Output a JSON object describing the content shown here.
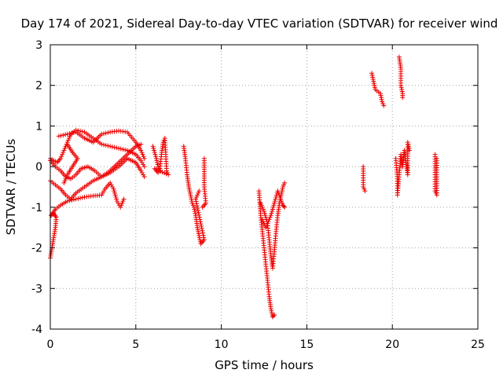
{
  "chart_data": {
    "type": "scatter",
    "title": "Day 174 of 2021, Sidereal Day-to-day VTEC variation (SDTVAR) for receiver wind",
    "xlabel": "GPS time / hours",
    "ylabel": "SDTVAR / TECUs",
    "xlim": [
      0,
      25
    ],
    "ylim": [
      -4,
      3
    ],
    "xticks": [
      0,
      5,
      10,
      15,
      20,
      25
    ],
    "yticks": [
      -4,
      -3,
      -2,
      -1,
      0,
      1,
      2,
      3
    ],
    "grid": true,
    "marker": "+",
    "color": "#ee0000",
    "series": [
      {
        "name": "SDTVAR",
        "segments": [
          [
            [
              0.0,
              -2.25
            ],
            [
              0.1,
              -2.0
            ],
            [
              0.2,
              -1.75
            ],
            [
              0.3,
              -1.5
            ],
            [
              0.35,
              -1.25
            ],
            [
              0.2,
              -1.15
            ],
            [
              0.05,
              -1.2
            ]
          ],
          [
            [
              0.05,
              -1.2
            ],
            [
              0.3,
              -1.05
            ],
            [
              0.6,
              -0.95
            ],
            [
              1.0,
              -0.85
            ],
            [
              1.5,
              -0.8
            ],
            [
              2.0,
              -0.75
            ],
            [
              2.5,
              -0.72
            ],
            [
              3.0,
              -0.7
            ],
            [
              3.2,
              -0.55
            ],
            [
              3.5,
              -0.4
            ],
            [
              3.7,
              -0.55
            ],
            [
              3.9,
              -0.85
            ],
            [
              4.1,
              -1.0
            ],
            [
              4.3,
              -0.8
            ]
          ],
          [
            [
              0.0,
              0.2
            ],
            [
              0.2,
              0.15
            ],
            [
              0.4,
              0.1
            ],
            [
              0.6,
              0.2
            ],
            [
              0.8,
              0.4
            ],
            [
              1.0,
              0.6
            ],
            [
              1.2,
              0.8
            ],
            [
              1.5,
              0.9
            ],
            [
              2.0,
              0.85
            ],
            [
              2.5,
              0.7
            ],
            [
              3.0,
              0.55
            ],
            [
              3.5,
              0.5
            ],
            [
              4.0,
              0.45
            ],
            [
              4.5,
              0.4
            ],
            [
              5.0,
              0.3
            ],
            [
              5.3,
              0.15
            ],
            [
              5.5,
              0.0
            ]
          ],
          [
            [
              0.5,
              0.75
            ],
            [
              1.0,
              0.8
            ],
            [
              1.5,
              0.85
            ],
            [
              2.0,
              0.7
            ],
            [
              2.5,
              0.6
            ],
            [
              3.0,
              0.8
            ],
            [
              3.5,
              0.85
            ],
            [
              4.0,
              0.88
            ],
            [
              4.5,
              0.85
            ],
            [
              5.0,
              0.6
            ],
            [
              5.3,
              0.4
            ],
            [
              5.5,
              0.2
            ]
          ],
          [
            [
              0.0,
              0.15
            ],
            [
              0.3,
              0.0
            ],
            [
              0.6,
              -0.1
            ],
            [
              0.9,
              -0.25
            ],
            [
              1.2,
              -0.3
            ],
            [
              1.5,
              -0.2
            ],
            [
              1.8,
              -0.05
            ],
            [
              2.2,
              0.0
            ],
            [
              2.6,
              -0.1
            ],
            [
              3.0,
              -0.25
            ],
            [
              3.5,
              -0.15
            ],
            [
              4.0,
              0.0
            ],
            [
              4.5,
              0.2
            ],
            [
              5.0,
              0.1
            ],
            [
              5.3,
              -0.1
            ],
            [
              5.5,
              -0.25
            ]
          ],
          [
            [
              0.0,
              -0.35
            ],
            [
              0.3,
              -0.45
            ],
            [
              0.6,
              -0.55
            ],
            [
              0.9,
              -0.7
            ],
            [
              1.2,
              -0.8
            ],
            [
              1.5,
              -0.65
            ],
            [
              2.0,
              -0.5
            ],
            [
              2.5,
              -0.35
            ],
            [
              3.0,
              -0.25
            ],
            [
              3.5,
              -0.1
            ],
            [
              4.0,
              0.1
            ],
            [
              4.5,
              0.3
            ],
            [
              5.0,
              0.5
            ],
            [
              5.3,
              0.55
            ]
          ],
          [
            [
              1.0,
              0.55
            ],
            [
              1.3,
              0.35
            ],
            [
              1.6,
              0.2
            ],
            [
              1.3,
              0.0
            ],
            [
              1.0,
              -0.2
            ],
            [
              0.8,
              -0.4
            ]
          ],
          [
            [
              6.0,
              0.5
            ],
            [
              6.2,
              0.2
            ],
            [
              6.3,
              0.0
            ],
            [
              6.4,
              -0.1
            ],
            [
              6.5,
              0.3
            ],
            [
              6.6,
              0.6
            ],
            [
              6.7,
              0.7
            ],
            [
              6.8,
              -0.1
            ],
            [
              6.9,
              -0.2
            ],
            [
              6.1,
              -0.05
            ],
            [
              6.3,
              -0.15
            ]
          ],
          [
            [
              7.8,
              0.5
            ],
            [
              7.9,
              0.2
            ],
            [
              8.0,
              -0.2
            ],
            [
              8.1,
              -0.5
            ],
            [
              8.2,
              -0.7
            ],
            [
              8.3,
              -0.9
            ],
            [
              8.4,
              -1.0
            ],
            [
              8.5,
              -1.2
            ],
            [
              8.6,
              -1.5
            ],
            [
              8.7,
              -1.7
            ],
            [
              8.8,
              -1.9
            ],
            [
              9.0,
              -1.8
            ],
            [
              8.5,
              -0.8
            ],
            [
              8.7,
              -0.6
            ]
          ],
          [
            [
              9.0,
              0.2
            ],
            [
              9.0,
              -0.5
            ],
            [
              9.1,
              -0.9
            ],
            [
              8.9,
              -1.0
            ]
          ],
          [
            [
              12.2,
              -0.6
            ],
            [
              12.3,
              -1.2
            ],
            [
              12.4,
              -1.6
            ],
            [
              12.5,
              -2.0
            ],
            [
              12.6,
              -2.4
            ],
            [
              12.7,
              -2.8
            ],
            [
              12.8,
              -3.2
            ],
            [
              12.9,
              -3.5
            ],
            [
              13.0,
              -3.7
            ],
            [
              13.1,
              -3.65
            ]
          ],
          [
            [
              12.3,
              -0.9
            ],
            [
              12.5,
              -1.1
            ],
            [
              12.7,
              -1.4
            ],
            [
              12.8,
              -1.8
            ],
            [
              12.9,
              -2.2
            ],
            [
              13.0,
              -2.5
            ],
            [
              13.1,
              -2.1
            ],
            [
              13.2,
              -1.6
            ],
            [
              13.3,
              -1.2
            ],
            [
              13.4,
              -0.9
            ],
            [
              13.5,
              -0.7
            ],
            [
              13.6,
              -0.5
            ],
            [
              13.7,
              -0.4
            ]
          ],
          [
            [
              12.4,
              -1.3
            ],
            [
              12.6,
              -1.5
            ],
            [
              12.9,
              -1.2
            ],
            [
              13.1,
              -0.9
            ],
            [
              13.3,
              -0.6
            ],
            [
              13.6,
              -0.95
            ],
            [
              13.7,
              -1.0
            ]
          ],
          [
            [
              18.3,
              0.0
            ],
            [
              18.3,
              -0.5
            ],
            [
              18.4,
              -0.6
            ]
          ],
          [
            [
              18.8,
              2.3
            ],
            [
              18.9,
              2.1
            ],
            [
              19.0,
              1.9
            ],
            [
              19.3,
              1.8
            ],
            [
              19.4,
              1.6
            ],
            [
              19.5,
              1.5
            ]
          ],
          [
            [
              20.4,
              2.7
            ],
            [
              20.5,
              2.4
            ],
            [
              20.5,
              2.0
            ],
            [
              20.6,
              1.8
            ],
            [
              20.6,
              1.7
            ]
          ],
          [
            [
              20.2,
              0.2
            ],
            [
              20.3,
              -0.3
            ],
            [
              20.3,
              -0.7
            ],
            [
              20.5,
              0.3
            ],
            [
              20.6,
              0.0
            ],
            [
              20.7,
              0.4
            ],
            [
              20.8,
              0.1
            ],
            [
              20.9,
              -0.2
            ],
            [
              20.9,
              0.6
            ],
            [
              21.0,
              0.4
            ]
          ],
          [
            [
              22.5,
              0.3
            ],
            [
              22.5,
              -0.2
            ],
            [
              22.5,
              -0.6
            ],
            [
              22.6,
              -0.7
            ],
            [
              22.6,
              0.2
            ]
          ]
        ]
      }
    ]
  }
}
